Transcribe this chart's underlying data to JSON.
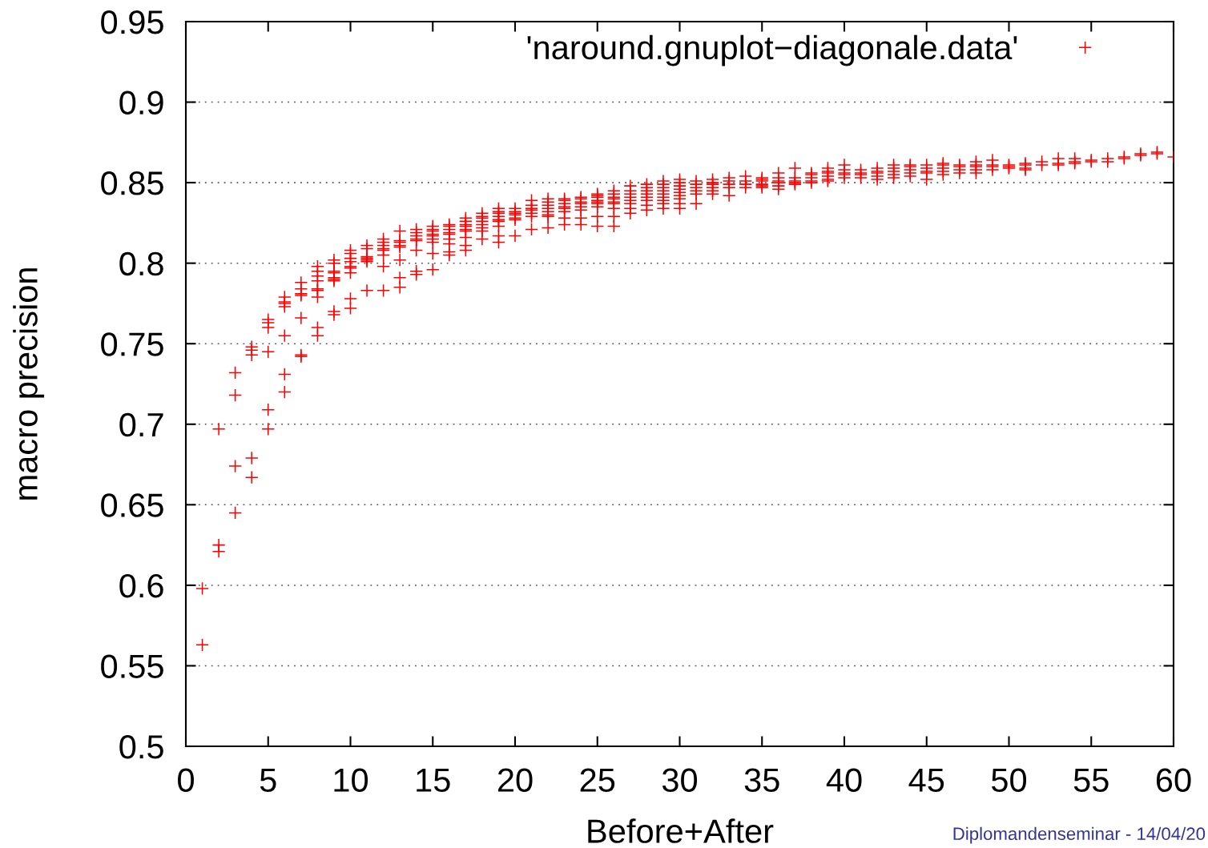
{
  "chart_data": {
    "type": "scatter",
    "xlabel": "Before+After",
    "ylabel": "macro precision",
    "annotations": [
      "Diplomandenseminar - 14/04/20"
    ],
    "xlim": [
      0,
      60
    ],
    "xticks": [
      0,
      5,
      10,
      15,
      20,
      25,
      30,
      35,
      40,
      45,
      50,
      55,
      60
    ],
    "ylim": [
      0.5,
      0.95
    ],
    "yticks": [
      0.5,
      0.55,
      0.6,
      0.65,
      0.7,
      0.75,
      0.8,
      0.85,
      0.9,
      0.95
    ],
    "grid": "y",
    "legend": "top right",
    "marker": "cross",
    "series": [
      {
        "name": "'naround.gnuplot−diagonale.data'",
        "color": "#ff0000",
        "x": [
          1,
          1,
          2,
          2,
          2,
          3,
          3,
          3,
          3,
          4,
          4,
          4,
          4,
          4,
          5,
          5,
          5,
          5,
          5,
          5,
          6,
          6,
          6,
          6,
          6,
          6,
          6,
          7,
          7,
          7,
          7,
          7,
          7,
          7,
          8,
          8,
          8,
          8,
          8,
          8,
          8,
          8,
          8,
          9,
          9,
          9,
          9,
          9,
          9,
          9,
          9,
          9,
          10,
          10,
          10,
          10,
          10,
          10,
          10,
          10,
          10,
          11,
          11,
          11,
          11,
          11,
          11,
          11,
          12,
          12,
          12,
          12,
          12,
          12,
          12,
          12,
          13,
          13,
          13,
          13,
          13,
          13,
          13,
          13,
          14,
          14,
          14,
          14,
          14,
          14,
          14,
          14,
          15,
          15,
          15,
          15,
          15,
          15,
          15,
          15,
          15,
          16,
          16,
          16,
          16,
          16,
          16,
          16,
          16,
          16,
          17,
          17,
          17,
          17,
          17,
          17,
          17,
          17,
          17,
          18,
          18,
          18,
          18,
          18,
          18,
          18,
          18,
          19,
          19,
          19,
          19,
          19,
          19,
          19,
          19,
          19,
          20,
          20,
          20,
          20,
          20,
          20,
          20,
          21,
          21,
          21,
          21,
          21,
          21,
          21,
          22,
          22,
          22,
          22,
          22,
          22,
          22,
          22,
          23,
          23,
          23,
          23,
          23,
          23,
          23,
          23,
          24,
          24,
          24,
          24,
          24,
          24,
          24,
          24,
          25,
          25,
          25,
          25,
          25,
          25,
          25,
          25,
          25,
          26,
          26,
          26,
          26,
          26,
          26,
          26,
          26,
          26,
          27,
          27,
          27,
          27,
          27,
          27,
          27,
          27,
          28,
          28,
          28,
          28,
          28,
          28,
          28,
          28,
          29,
          29,
          29,
          29,
          29,
          29,
          29,
          29,
          29,
          30,
          30,
          30,
          30,
          30,
          30,
          30,
          30,
          30,
          31,
          31,
          31,
          31,
          31,
          31,
          32,
          32,
          32,
          32,
          32,
          32,
          33,
          33,
          33,
          33,
          33,
          34,
          34,
          34,
          34,
          35,
          35,
          35,
          35,
          35,
          35,
          36,
          36,
          36,
          36,
          36,
          36,
          37,
          37,
          37,
          37,
          37,
          38,
          38,
          38,
          38,
          38,
          39,
          39,
          39,
          39,
          39,
          39,
          40,
          40,
          40,
          40,
          40,
          41,
          41,
          41,
          41,
          42,
          42,
          42,
          42,
          42,
          43,
          43,
          43,
          43,
          43,
          44,
          44,
          44,
          44,
          44,
          45,
          45,
          45,
          45,
          45,
          46,
          46,
          46,
          46,
          46,
          47,
          47,
          47,
          47,
          48,
          48,
          48,
          48,
          48,
          49,
          49,
          49,
          49,
          50,
          50,
          50,
          51,
          51,
          51,
          51,
          52,
          52,
          53,
          53,
          53,
          54,
          54,
          54,
          55,
          55,
          56,
          56,
          57,
          57,
          58,
          58,
          59,
          59,
          60
        ],
        "values": [
          0.598,
          0.563,
          0.697,
          0.625,
          0.621,
          0.732,
          0.718,
          0.674,
          0.645,
          0.748,
          0.746,
          0.743,
          0.679,
          0.667,
          0.765,
          0.763,
          0.76,
          0.745,
          0.709,
          0.697,
          0.779,
          0.776,
          0.775,
          0.773,
          0.755,
          0.731,
          0.72,
          0.788,
          0.784,
          0.781,
          0.78,
          0.766,
          0.743,
          0.742,
          0.798,
          0.795,
          0.792,
          0.789,
          0.784,
          0.783,
          0.779,
          0.76,
          0.755,
          0.802,
          0.8,
          0.795,
          0.794,
          0.791,
          0.79,
          0.789,
          0.77,
          0.768,
          0.808,
          0.806,
          0.803,
          0.801,
          0.798,
          0.797,
          0.794,
          0.778,
          0.772,
          0.811,
          0.809,
          0.804,
          0.803,
          0.802,
          0.801,
          0.783,
          0.815,
          0.813,
          0.811,
          0.809,
          0.808,
          0.805,
          0.798,
          0.783,
          0.82,
          0.814,
          0.813,
          0.811,
          0.81,
          0.802,
          0.791,
          0.785,
          0.821,
          0.819,
          0.817,
          0.815,
          0.814,
          0.808,
          0.795,
          0.793,
          0.823,
          0.821,
          0.82,
          0.818,
          0.817,
          0.815,
          0.813,
          0.806,
          0.796,
          0.824,
          0.823,
          0.821,
          0.819,
          0.818,
          0.815,
          0.812,
          0.807,
          0.805,
          0.828,
          0.826,
          0.824,
          0.823,
          0.821,
          0.82,
          0.816,
          0.811,
          0.808,
          0.831,
          0.829,
          0.828,
          0.826,
          0.824,
          0.822,
          0.82,
          0.815,
          0.834,
          0.832,
          0.831,
          0.829,
          0.827,
          0.826,
          0.823,
          0.817,
          0.813,
          0.834,
          0.832,
          0.831,
          0.83,
          0.828,
          0.827,
          0.817,
          0.839,
          0.836,
          0.834,
          0.833,
          0.831,
          0.829,
          0.821,
          0.84,
          0.838,
          0.836,
          0.834,
          0.832,
          0.83,
          0.829,
          0.822,
          0.84,
          0.839,
          0.837,
          0.835,
          0.834,
          0.832,
          0.828,
          0.824,
          0.841,
          0.84,
          0.838,
          0.837,
          0.835,
          0.833,
          0.828,
          0.824,
          0.843,
          0.842,
          0.841,
          0.839,
          0.838,
          0.837,
          0.835,
          0.829,
          0.823,
          0.845,
          0.843,
          0.841,
          0.84,
          0.838,
          0.837,
          0.834,
          0.829,
          0.823,
          0.848,
          0.845,
          0.843,
          0.841,
          0.839,
          0.837,
          0.834,
          0.831,
          0.849,
          0.847,
          0.845,
          0.843,
          0.841,
          0.839,
          0.836,
          0.833,
          0.851,
          0.849,
          0.847,
          0.845,
          0.843,
          0.841,
          0.839,
          0.837,
          0.834,
          0.852,
          0.85,
          0.848,
          0.846,
          0.844,
          0.842,
          0.84,
          0.837,
          0.834,
          0.851,
          0.849,
          0.847,
          0.845,
          0.843,
          0.837,
          0.852,
          0.85,
          0.849,
          0.847,
          0.845,
          0.843,
          0.853,
          0.851,
          0.849,
          0.847,
          0.842,
          0.854,
          0.851,
          0.849,
          0.847,
          0.853,
          0.852,
          0.851,
          0.849,
          0.848,
          0.847,
          0.856,
          0.853,
          0.851,
          0.85,
          0.848,
          0.846,
          0.859,
          0.853,
          0.851,
          0.85,
          0.849,
          0.856,
          0.855,
          0.853,
          0.851,
          0.85,
          0.859,
          0.857,
          0.856,
          0.854,
          0.852,
          0.851,
          0.861,
          0.858,
          0.856,
          0.855,
          0.853,
          0.858,
          0.856,
          0.855,
          0.853,
          0.859,
          0.857,
          0.856,
          0.854,
          0.852,
          0.861,
          0.859,
          0.857,
          0.855,
          0.853,
          0.861,
          0.86,
          0.858,
          0.856,
          0.854,
          0.861,
          0.859,
          0.857,
          0.856,
          0.852,
          0.862,
          0.861,
          0.859,
          0.857,
          0.855,
          0.861,
          0.86,
          0.858,
          0.856,
          0.863,
          0.861,
          0.86,
          0.858,
          0.856,
          0.864,
          0.861,
          0.86,
          0.858,
          0.861,
          0.86,
          0.859,
          0.862,
          0.861,
          0.859,
          0.858,
          0.863,
          0.861,
          0.865,
          0.862,
          0.861,
          0.865,
          0.863,
          0.862,
          0.864,
          0.863,
          0.865,
          0.863,
          0.866,
          0.865,
          0.868,
          0.867,
          0.869,
          0.868,
          0.866
        ]
      }
    ]
  }
}
